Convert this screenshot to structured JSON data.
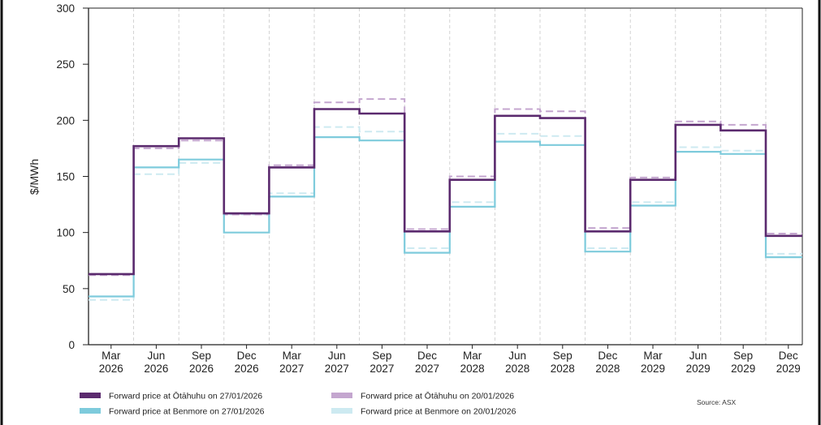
{
  "chart_data": {
    "type": "line",
    "step": true,
    "ylabel": "$/MWh",
    "ylim": [
      0,
      300
    ],
    "yticks": [
      0,
      50,
      100,
      150,
      200,
      250,
      300
    ],
    "categories": [
      [
        "Mar",
        "2026"
      ],
      [
        "Jun",
        "2026"
      ],
      [
        "Sep",
        "2026"
      ],
      [
        "Dec",
        "2026"
      ],
      [
        "Mar",
        "2027"
      ],
      [
        "Jun",
        "2027"
      ],
      [
        "Sep",
        "2027"
      ],
      [
        "Dec",
        "2027"
      ],
      [
        "Mar",
        "2028"
      ],
      [
        "Jun",
        "2028"
      ],
      [
        "Sep",
        "2028"
      ],
      [
        "Dec",
        "2028"
      ],
      [
        "Mar",
        "2029"
      ],
      [
        "Jun",
        "2029"
      ],
      [
        "Sep",
        "2029"
      ],
      [
        "Dec",
        "2029"
      ]
    ],
    "grid": "vertical dashed",
    "series": [
      {
        "name": "Forward price at Ōtāhuhu on 27/01/2026",
        "color": "#5b2a6e",
        "style": "solid",
        "values": [
          63,
          177,
          184,
          117,
          158,
          210,
          206,
          101,
          147,
          204,
          202,
          101,
          147,
          196,
          191,
          97
        ]
      },
      {
        "name": "Forward price at Benmore on 27/01/2026",
        "color": "#7ecbdc",
        "style": "solid",
        "values": [
          43,
          158,
          165,
          100,
          132,
          185,
          182,
          82,
          123,
          181,
          178,
          83,
          124,
          172,
          170,
          78
        ]
      },
      {
        "name": "Forward price at Ōtāhuhu on 20/01/2026",
        "color": "#c4a6cf",
        "style": "dashed",
        "values": [
          62,
          175,
          182,
          116,
          160,
          216,
          219,
          103,
          150,
          210,
          208,
          104,
          149,
          199,
          196,
          99
        ]
      },
      {
        "name": "Forward price at Benmore on 20/01/2026",
        "color": "#cdeaf1",
        "style": "dashed",
        "values": [
          40,
          152,
          162,
          116,
          135,
          194,
          190,
          86,
          127,
          188,
          186,
          86,
          127,
          176,
          173,
          81
        ]
      }
    ],
    "source": "Source: ASX"
  }
}
